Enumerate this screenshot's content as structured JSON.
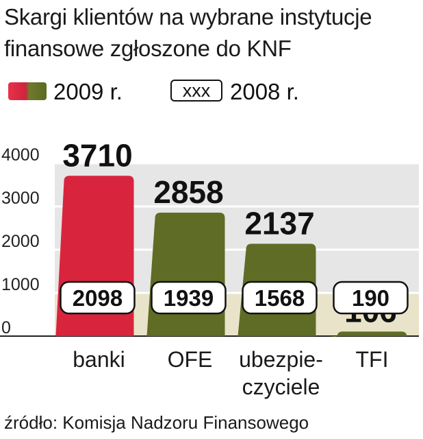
{
  "title_line1": "Skargi klientów na wybrane instytucje",
  "title_line2": "finansowe zgłoszone do KNF",
  "legend": {
    "item_2009": "2009 r.",
    "box_label": "xxx",
    "item_2008": "2008 r."
  },
  "source": "źródło: Komisja Nadzoru Finansowego",
  "colors": {
    "banki_bar": "#d9243d",
    "other_bar": "#5f6c25",
    "plot_bg": "#e6e6e6",
    "plot_lower_bg": "#e9e3c9"
  },
  "chart_data": {
    "type": "bar",
    "title": "Skargi klientów na wybrane instytucje finansowe zgłoszone do KNF",
    "categories": [
      "banki",
      "OFE",
      "ubezpie-\nczyciele",
      "TFI"
    ],
    "category_lines": [
      [
        "banki"
      ],
      [
        "OFE"
      ],
      [
        "ubezpie-",
        "czyciele"
      ],
      [
        "TFI"
      ]
    ],
    "series": [
      {
        "name": "2009 r.",
        "values": [
          3710,
          2858,
          2137,
          106
        ]
      },
      {
        "name": "2008 r.",
        "values": [
          2098,
          1939,
          1568,
          190
        ]
      }
    ],
    "value_labels_2009": [
      "3710",
      "2858",
      "2137",
      "106"
    ],
    "value_labels_2008": [
      "2098",
      "1939",
      "1568",
      "190"
    ],
    "yticks": [
      0,
      1000,
      2000,
      3000,
      4000
    ],
    "ytick_labels": [
      "0",
      "1000",
      "2000",
      "3000",
      "4000"
    ],
    "ylim": [
      0,
      4000
    ],
    "grid": true,
    "legend_position": "top-left"
  }
}
